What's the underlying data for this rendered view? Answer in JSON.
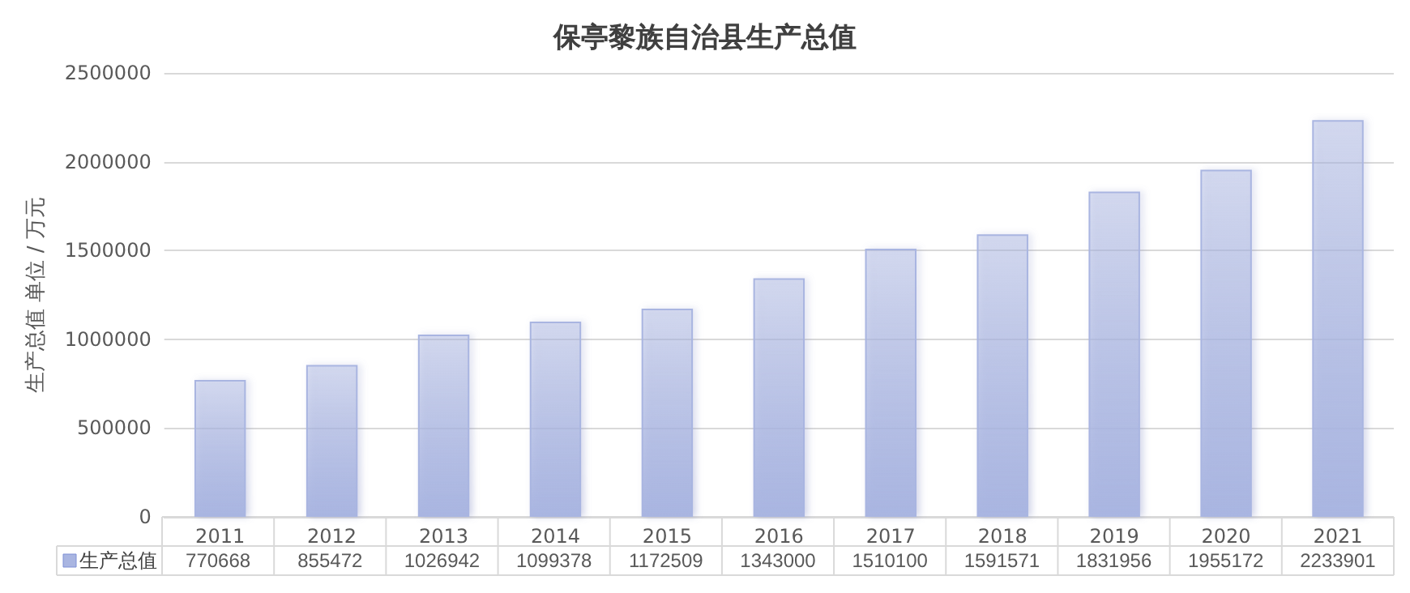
{
  "chart_data": {
    "type": "bar",
    "title": "保亭黎族自治县生产总值",
    "ylabel": "生产总值 单位 / 万元",
    "categories": [
      "2011",
      "2012",
      "2013",
      "2014",
      "2015",
      "2016",
      "2017",
      "2018",
      "2019",
      "2020",
      "2021"
    ],
    "series": [
      {
        "name": "生产总值",
        "color": "#a9b5e1",
        "values": [
          770668,
          855472,
          1026942,
          1099378,
          1172509,
          1343000,
          1510100,
          1591571,
          1831956,
          1955172,
          2233901
        ]
      }
    ],
    "ylim": [
      0,
      2500000
    ],
    "yticks": [
      0,
      500000,
      1000000,
      1500000,
      2000000,
      2500000
    ],
    "grid": "y",
    "legend": "bottom left",
    "data_labels": true
  }
}
